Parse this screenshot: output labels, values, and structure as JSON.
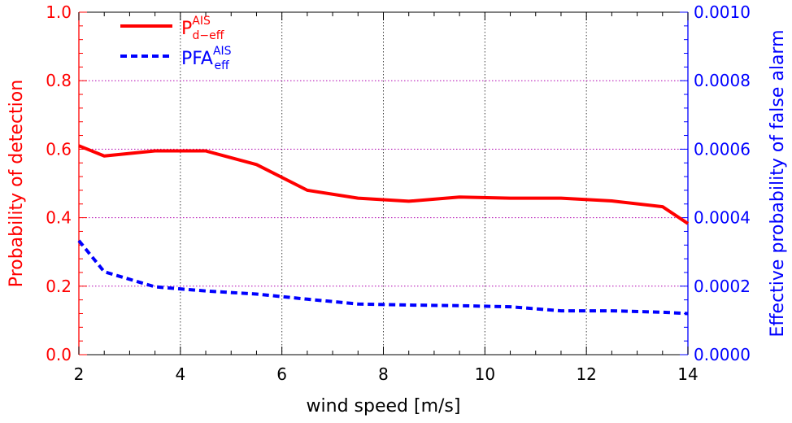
{
  "chart_data": {
    "type": "line",
    "x_axis": {
      "label": "wind speed [m/s]",
      "range": [
        2,
        14
      ],
      "major_ticks": [
        2,
        4,
        6,
        8,
        10,
        12,
        14
      ],
      "tick_labels": [
        "2",
        "4",
        "6",
        "8",
        "10",
        "12",
        "14"
      ],
      "minor_step": 0.5
    },
    "y_axis_left": {
      "label": "Probability of detection",
      "range": [
        0.0,
        1.0
      ],
      "major_ticks": [
        0.0,
        0.2,
        0.4,
        0.6,
        0.8,
        1.0
      ],
      "tick_labels": [
        "0.0",
        "0.2",
        "0.4",
        "0.6",
        "0.8",
        "1.0"
      ],
      "color": "#ff0000"
    },
    "y_axis_right": {
      "label": "Effective probability of false alarm",
      "range": [
        0.0,
        0.001
      ],
      "major_ticks": [
        0.0,
        0.0002,
        0.0004,
        0.0006,
        0.0008,
        0.001
      ],
      "tick_labels": [
        "0.0000",
        "0.0002",
        "0.0004",
        "0.0006",
        "0.0008",
        "0.0010"
      ],
      "color": "#0000ff"
    },
    "grid": {
      "vertical": true,
      "horizontal": true,
      "vertical_color": "#404040",
      "horizontal_color": "#b000b0",
      "style": "dotted"
    },
    "series": [
      {
        "legend_main": "P",
        "legend_sup": "AIS",
        "legend_sub": "d−eff",
        "axis": "left",
        "color": "#ff0000",
        "line_style": "solid",
        "x": [
          2,
          2.5,
          3.5,
          4.5,
          5.5,
          6.5,
          7.5,
          8.5,
          9.5,
          10.5,
          11.5,
          12.5,
          13.5,
          14
        ],
        "y": [
          0.61,
          0.58,
          0.595,
          0.595,
          0.555,
          0.48,
          0.457,
          0.448,
          0.46,
          0.457,
          0.457,
          0.449,
          0.432,
          0.383
        ]
      },
      {
        "legend_main": "PFA",
        "legend_sup": "AIS",
        "legend_sub": "eff",
        "axis": "right",
        "color": "#0000ff",
        "line_style": "dashed",
        "x": [
          2,
          2.5,
          3.5,
          4.5,
          5.5,
          6.5,
          7.5,
          8.5,
          9.5,
          10.5,
          11.5,
          12.5,
          13.5,
          14
        ],
        "y": [
          0.000333,
          0.000242,
          0.000198,
          0.000186,
          0.000177,
          0.000162,
          0.000148,
          0.000145,
          0.000143,
          0.00014,
          0.000128,
          0.000128,
          0.000124,
          0.00012
        ]
      }
    ],
    "legend_position": "top-left"
  }
}
